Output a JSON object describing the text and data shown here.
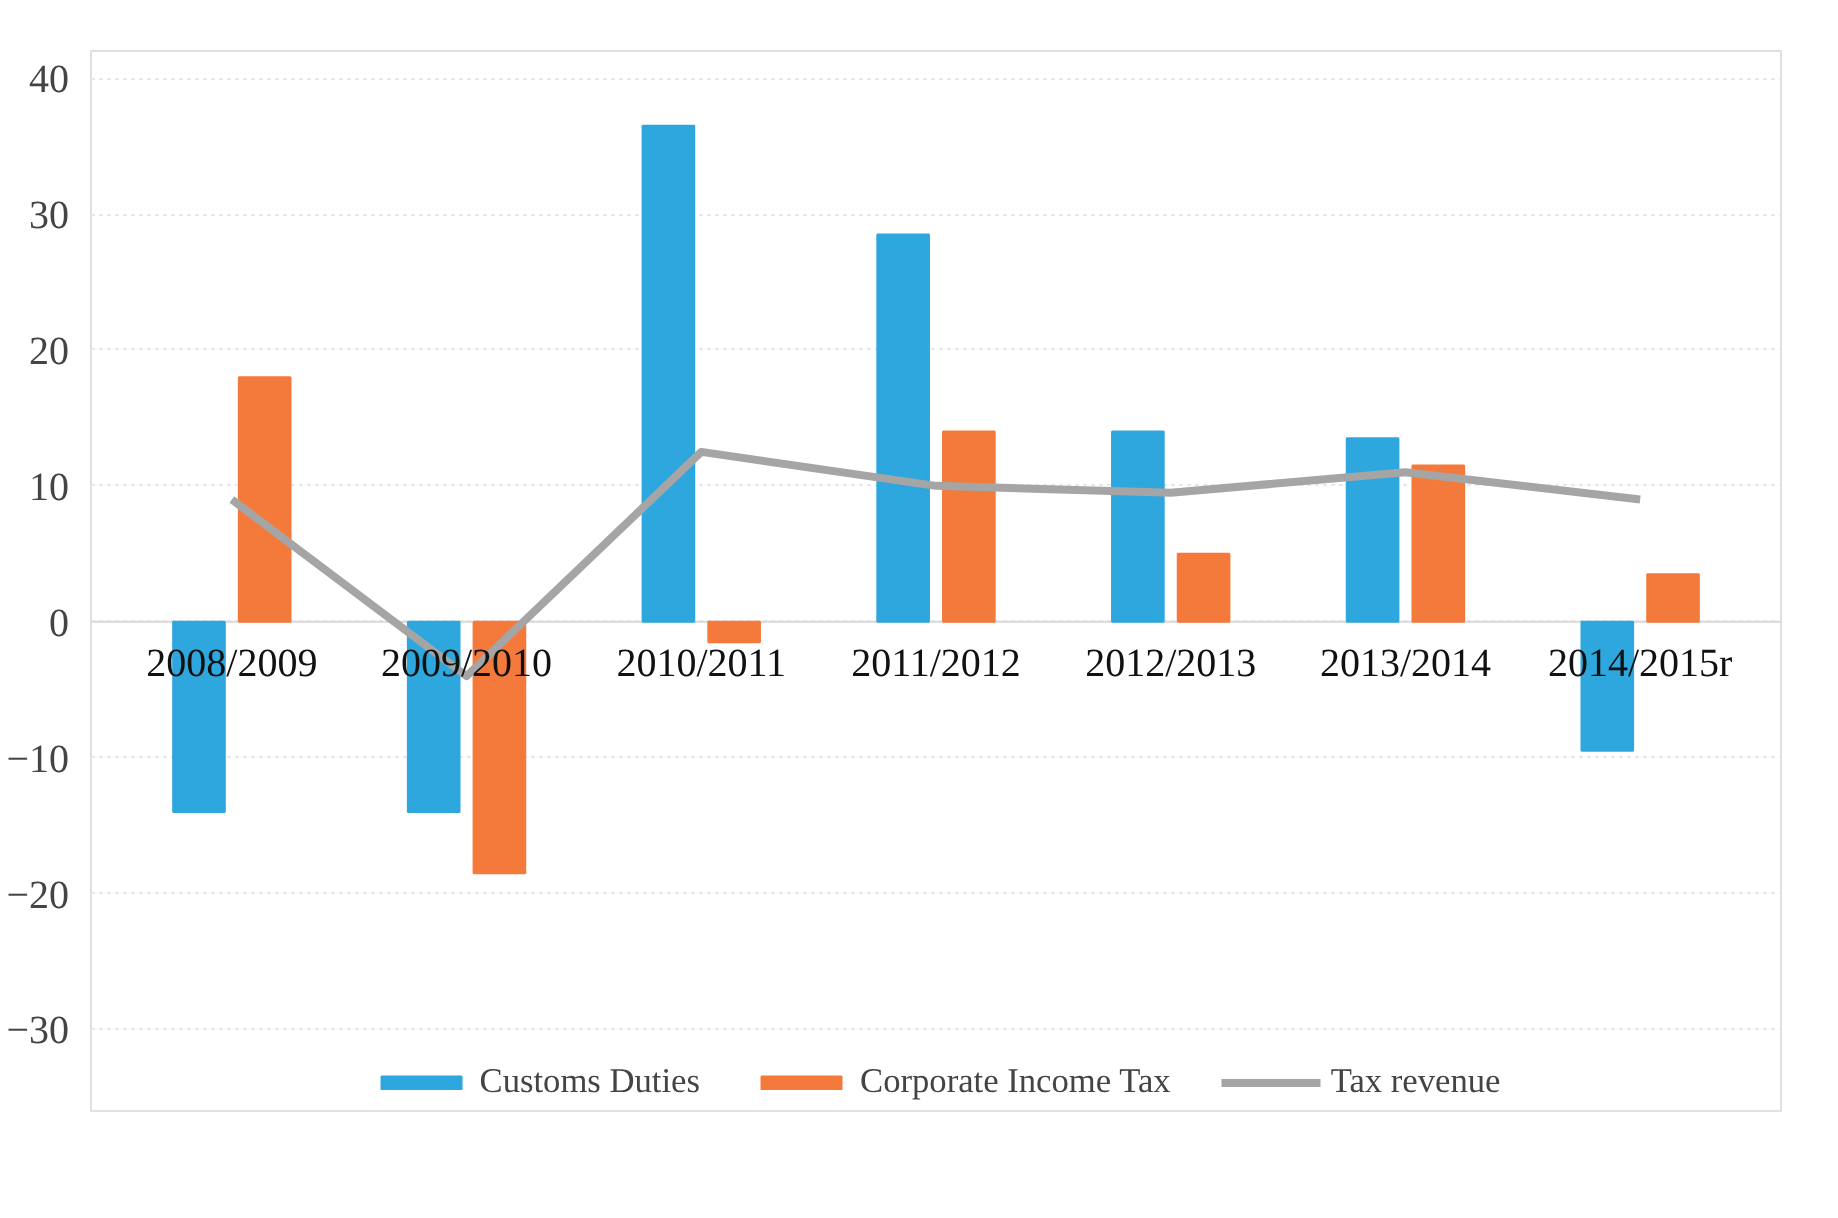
{
  "chart_data": {
    "type": "bar",
    "categories": [
      "2008/2009",
      "2009/2010",
      "2010/2011",
      "2011/2012",
      "2012/2013",
      "2013/2014",
      "2014/2015r"
    ],
    "series": [
      {
        "name": "Customs Duties",
        "color": "#2ea6de",
        "values": [
          -14,
          -14,
          36.5,
          28.5,
          14,
          13.5,
          -9.5
        ]
      },
      {
        "name": "Corporate Income Tax",
        "color": "#f47a3c",
        "values": [
          18,
          -18.5,
          -1.5,
          14,
          5,
          11.5,
          3.5
        ]
      },
      {
        "name": "Tax revenue",
        "type": "line",
        "color": "#a5a5a5",
        "values": [
          9,
          -4,
          12.5,
          10,
          9.5,
          11,
          9
        ]
      }
    ],
    "ylim": [
      -36,
      42
    ],
    "yticks": [
      -30,
      -20,
      -10,
      0,
      10,
      20,
      30,
      40
    ],
    "grid": "y",
    "legend": "bottom"
  }
}
